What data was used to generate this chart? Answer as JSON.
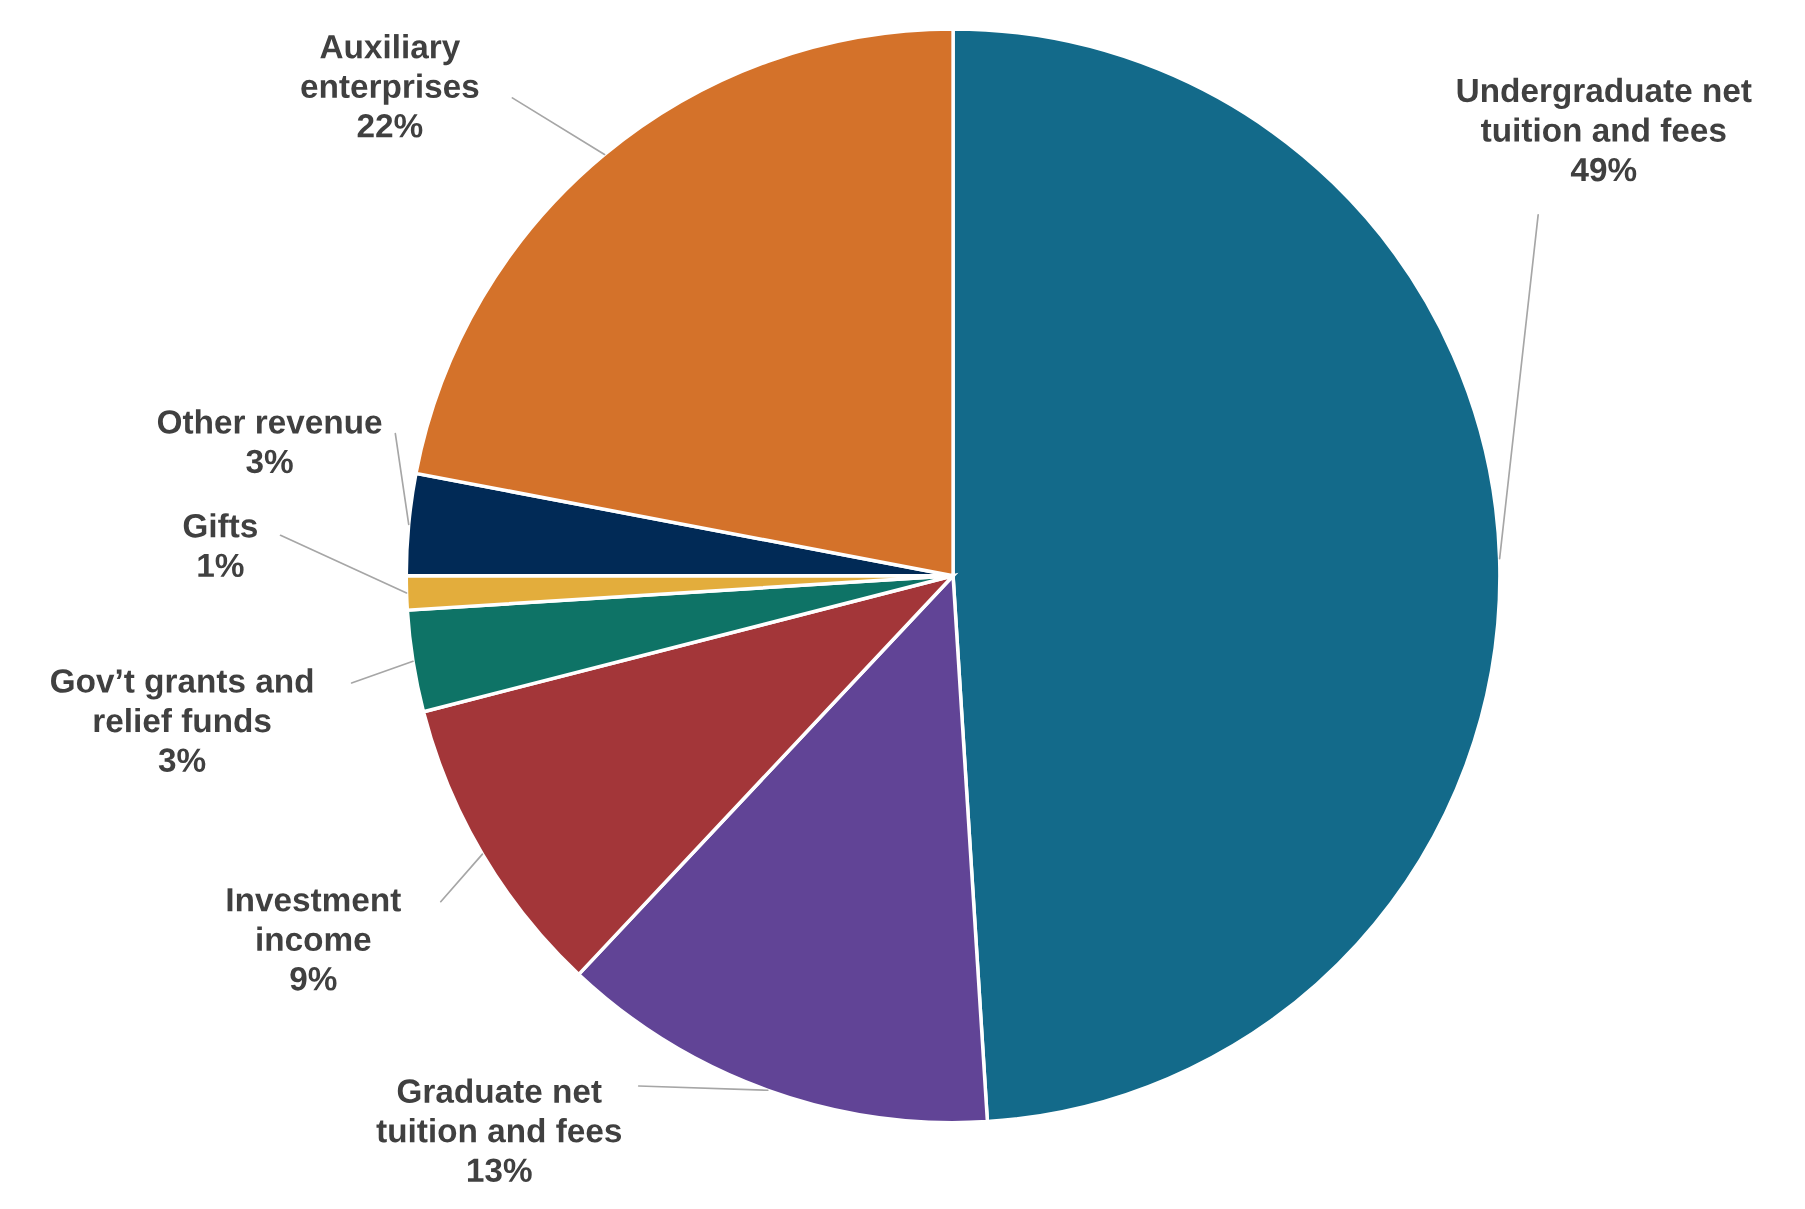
{
  "chart_data": {
    "type": "pie",
    "categories": [
      "Undergraduate net\ntuition and fees",
      "Graduate net\ntuition and fees",
      "Investment\nincome",
      "Gov’t grants and\nrelief funds",
      "Gifts",
      "Other revenue",
      "Auxiliary\nenterprises"
    ],
    "values": [
      49,
      13,
      9,
      3,
      1,
      3,
      22
    ],
    "value_labels": [
      "49%",
      "13%",
      "9%",
      "3%",
      "1%",
      "3%",
      "22%"
    ],
    "colors": [
      "#136a8a",
      "#614496",
      "#a33639",
      "#0e7366",
      "#e3ad3c",
      "#012a56",
      "#d4722a"
    ]
  }
}
